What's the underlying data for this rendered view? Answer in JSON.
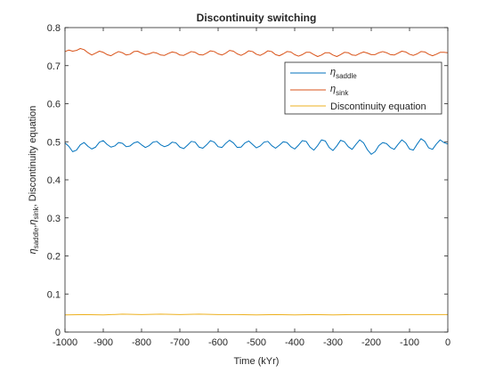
{
  "chart_data": {
    "type": "line",
    "title": "Discontinuity switching",
    "xlabel": "Time (kYr)",
    "ylabel": {
      "eta1_sub": "saddle",
      "eta2_sub": "sink",
      "rest": ", Discontinuity equation"
    },
    "xlim": [
      -1000,
      0
    ],
    "ylim": [
      0,
      0.8
    ],
    "xticks": [
      -1000,
      -900,
      -800,
      -700,
      -600,
      -500,
      -400,
      -300,
      -200,
      -100,
      0
    ],
    "yticks": [
      0,
      0.1,
      0.2,
      0.3,
      0.4,
      0.5,
      0.6,
      0.7,
      0.8
    ],
    "xtick_labels": [
      "-1000",
      "-900",
      "-800",
      "-700",
      "-600",
      "-500",
      "-400",
      "-300",
      "-200",
      "-100",
      "0"
    ],
    "ytick_labels": [
      "0",
      "0.1",
      "0.2",
      "0.3",
      "0.4",
      "0.5",
      "0.6",
      "0.7",
      "0.8"
    ],
    "grid": false,
    "legend_position": "top-right",
    "series": [
      {
        "name": "η_saddle",
        "legend_symbol": "η",
        "legend_sub": "saddle",
        "color": "#0072BD",
        "x": [
          -1000,
          -990,
          -980,
          -970,
          -960,
          -950,
          -940,
          -930,
          -920,
          -910,
          -900,
          -890,
          -880,
          -870,
          -860,
          -850,
          -840,
          -830,
          -820,
          -810,
          -800,
          -790,
          -780,
          -770,
          -760,
          -750,
          -740,
          -730,
          -720,
          -710,
          -700,
          -690,
          -680,
          -670,
          -660,
          -650,
          -640,
          -630,
          -620,
          -610,
          -600,
          -590,
          -580,
          -570,
          -560,
          -550,
          -540,
          -530,
          -520,
          -510,
          -500,
          -490,
          -480,
          -470,
          -460,
          -450,
          -440,
          -430,
          -420,
          -410,
          -400,
          -390,
          -380,
          -370,
          -360,
          -350,
          -340,
          -330,
          -320,
          -310,
          -300,
          -290,
          -280,
          -270,
          -260,
          -250,
          -240,
          -230,
          -220,
          -210,
          -200,
          -190,
          -180,
          -170,
          -160,
          -150,
          -140,
          -130,
          -120,
          -110,
          -100,
          -90,
          -80,
          -70,
          -60,
          -50,
          -40,
          -30,
          -20,
          -10,
          0
        ],
        "y": [
          0.497,
          0.488,
          0.474,
          0.478,
          0.492,
          0.498,
          0.488,
          0.481,
          0.486,
          0.499,
          0.503,
          0.493,
          0.486,
          0.489,
          0.498,
          0.496,
          0.487,
          0.489,
          0.497,
          0.5,
          0.492,
          0.485,
          0.49,
          0.499,
          0.501,
          0.492,
          0.487,
          0.491,
          0.499,
          0.497,
          0.486,
          0.482,
          0.491,
          0.501,
          0.499,
          0.486,
          0.483,
          0.492,
          0.503,
          0.499,
          0.487,
          0.485,
          0.496,
          0.504,
          0.497,
          0.485,
          0.486,
          0.497,
          0.502,
          0.493,
          0.484,
          0.489,
          0.499,
          0.501,
          0.49,
          0.483,
          0.491,
          0.5,
          0.498,
          0.487,
          0.481,
          0.491,
          0.503,
          0.501,
          0.486,
          0.478,
          0.49,
          0.505,
          0.502,
          0.485,
          0.477,
          0.489,
          0.504,
          0.5,
          0.487,
          0.48,
          0.493,
          0.505,
          0.497,
          0.479,
          0.467,
          0.474,
          0.49,
          0.498,
          0.495,
          0.485,
          0.48,
          0.493,
          0.505,
          0.497,
          0.481,
          0.478,
          0.494,
          0.508,
          0.501,
          0.484,
          0.48,
          0.494,
          0.505,
          0.498,
          0.494
        ]
      },
      {
        "name": "η_sink",
        "legend_symbol": "η",
        "legend_sub": "sink",
        "color": "#D95319",
        "x": [
          -1000,
          -990,
          -980,
          -970,
          -960,
          -950,
          -940,
          -930,
          -920,
          -910,
          -900,
          -890,
          -880,
          -870,
          -860,
          -850,
          -840,
          -830,
          -820,
          -810,
          -800,
          -790,
          -780,
          -770,
          -760,
          -750,
          -740,
          -730,
          -720,
          -710,
          -700,
          -690,
          -680,
          -670,
          -660,
          -650,
          -640,
          -630,
          -620,
          -610,
          -600,
          -590,
          -580,
          -570,
          -560,
          -550,
          -540,
          -530,
          -520,
          -510,
          -500,
          -490,
          -480,
          -470,
          -460,
          -450,
          -440,
          -430,
          -420,
          -410,
          -400,
          -390,
          -380,
          -370,
          -360,
          -350,
          -340,
          -330,
          -320,
          -310,
          -300,
          -290,
          -280,
          -270,
          -260,
          -250,
          -240,
          -230,
          -220,
          -210,
          -200,
          -190,
          -180,
          -170,
          -160,
          -150,
          -140,
          -130,
          -120,
          -110,
          -100,
          -90,
          -80,
          -70,
          -60,
          -50,
          -40,
          -30,
          -20,
          -10,
          0
        ],
        "y": [
          0.737,
          0.741,
          0.738,
          0.74,
          0.745,
          0.742,
          0.734,
          0.728,
          0.733,
          0.738,
          0.735,
          0.729,
          0.726,
          0.732,
          0.737,
          0.734,
          0.728,
          0.73,
          0.737,
          0.738,
          0.733,
          0.729,
          0.731,
          0.735,
          0.733,
          0.728,
          0.727,
          0.732,
          0.736,
          0.734,
          0.728,
          0.727,
          0.732,
          0.737,
          0.735,
          0.729,
          0.728,
          0.733,
          0.739,
          0.737,
          0.731,
          0.728,
          0.733,
          0.74,
          0.738,
          0.731,
          0.727,
          0.732,
          0.739,
          0.737,
          0.73,
          0.727,
          0.732,
          0.739,
          0.737,
          0.729,
          0.726,
          0.731,
          0.737,
          0.736,
          0.729,
          0.725,
          0.729,
          0.735,
          0.735,
          0.729,
          0.724,
          0.728,
          0.734,
          0.734,
          0.728,
          0.724,
          0.729,
          0.735,
          0.734,
          0.728,
          0.727,
          0.732,
          0.736,
          0.733,
          0.729,
          0.729,
          0.734,
          0.737,
          0.734,
          0.729,
          0.728,
          0.733,
          0.738,
          0.736,
          0.73,
          0.727,
          0.731,
          0.737,
          0.736,
          0.73,
          0.726,
          0.73,
          0.735,
          0.735,
          0.734
        ]
      },
      {
        "name": "Discontinuity equation",
        "legend_symbol": "Discontinuity equation",
        "legend_sub": "",
        "color": "#EDB120",
        "x": [
          -1000,
          -950,
          -900,
          -850,
          -800,
          -750,
          -700,
          -650,
          -600,
          -550,
          -500,
          -450,
          -400,
          -350,
          -300,
          -250,
          -200,
          -150,
          -100,
          -50,
          0
        ],
        "y": [
          0.045,
          0.046,
          0.045,
          0.047,
          0.046,
          0.047,
          0.046,
          0.047,
          0.046,
          0.046,
          0.045,
          0.046,
          0.045,
          0.046,
          0.045,
          0.046,
          0.046,
          0.046,
          0.046,
          0.046,
          0.046
        ]
      }
    ]
  }
}
